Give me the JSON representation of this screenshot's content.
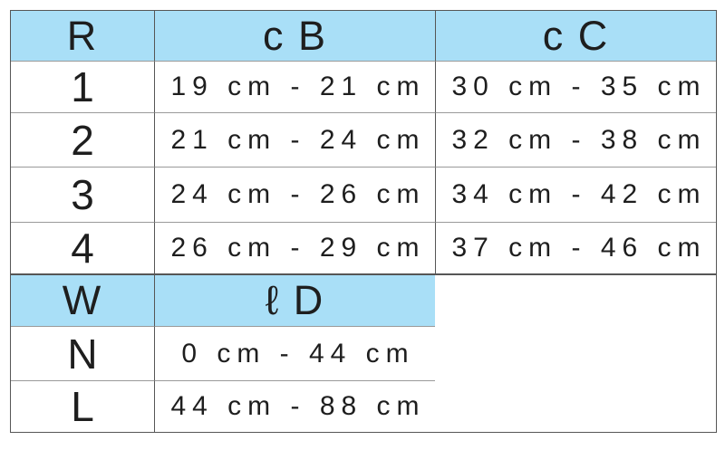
{
  "colors": {
    "header_bg": "#a9dff7",
    "border_dark": "#565656",
    "border_light": "#9a9a9a",
    "text": "#1e1e1e",
    "page_bg": "#ffffff"
  },
  "top_table": {
    "headers": {
      "col1": "R",
      "col2": "c B",
      "col3": "c C"
    },
    "rows": [
      {
        "label": "1",
        "cb": "19 cm - 21 cm",
        "cc": "30 cm - 35 cm"
      },
      {
        "label": "2",
        "cb": "21 cm - 24 cm",
        "cc": "32 cm - 38 cm"
      },
      {
        "label": "3",
        "cb": "24 cm - 26 cm",
        "cc": "34 cm - 42 cm"
      },
      {
        "label": "4",
        "cb": "26 cm - 29 cm",
        "cc": "37 cm - 46 cm"
      }
    ]
  },
  "bottom_table": {
    "headers": {
      "col1": "W",
      "col2": "ℓ D"
    },
    "rows": [
      {
        "label": "N",
        "ld": "0 cm - 44 cm"
      },
      {
        "label": "L",
        "ld": "44 cm - 88 cm"
      }
    ]
  }
}
